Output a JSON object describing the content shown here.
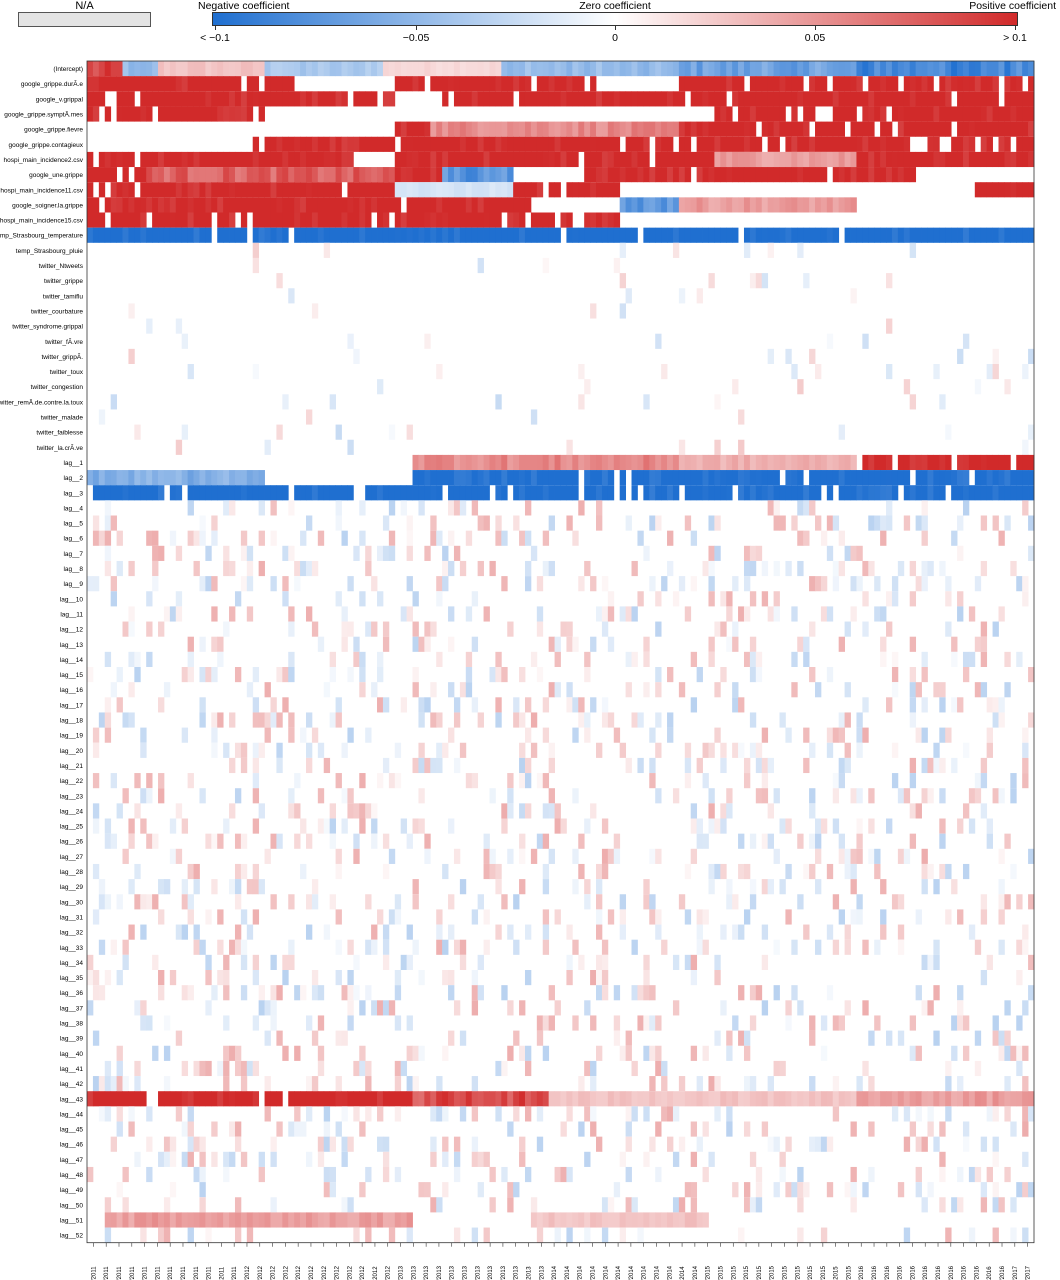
{
  "legend": {
    "na_label": "N/A",
    "negative_label": "Negative coefficient",
    "zero_label": "Zero coefficient",
    "positive_label": "Positive coefficient",
    "ticks": [
      "< −0.1",
      "−0.05",
      "0",
      "0.05",
      "> 0.1"
    ],
    "colors": {
      "negative": "#1f6fd0",
      "zero": "#ffffff",
      "positive": "#d12a2a",
      "na": "#e4e4e4"
    }
  },
  "chart_data": {
    "type": "heatmap",
    "value_range": [
      -0.1,
      0.1
    ],
    "n_time_columns": 160,
    "rows": [
      "(Intercept)",
      "google_grippe.durÃ.e",
      "google_v.grippal",
      "google_grippe.symptÃ.mes",
      "google_grippe.fievre",
      "google_grippe.contagieux",
      "hospi_main_incidence2.csv",
      "google_une.grippe",
      "hospi_main_incidence11.csv",
      "google_soigner.la.grippe",
      "hospi_main_incidence15.csv",
      "temp_Strasbourg_temperature",
      "temp_Strasbourg_pluie",
      "twitter_Ntweets",
      "twitter_grippe",
      "twitter_tamiflu",
      "twitter_courbature",
      "twitter_syndrome.grippal",
      "twitter_fÃ.vre",
      "twitter_grippÃ.",
      "twitter_toux",
      "twitter_congestion",
      "twitter_remÃ.de.contre.la.toux",
      "twitter_malade",
      "twitter_faiblesse",
      "twitter_la.crÃ.ve",
      "lag__1",
      "lag__2",
      "lag__3",
      "lag__4",
      "lag__5",
      "lag__6",
      "lag__7",
      "lag__8",
      "lag__9",
      "lag__10",
      "lag__11",
      "lag__12",
      "lag__13",
      "lag__14",
      "lag__15",
      "lag__16",
      "lag__17",
      "lag__18",
      "lag__19",
      "lag__20",
      "lag__21",
      "lag__22",
      "lag__23",
      "lag__24",
      "lag__25",
      "lag__26",
      "lag__27",
      "lag__28",
      "lag__29",
      "lag__30",
      "lag__31",
      "lag__32",
      "lag__33",
      "lag__34",
      "lag__35",
      "lag__36",
      "lag__37",
      "lag__38",
      "lag__39",
      "lag__40",
      "lag__41",
      "lag__42",
      "lag__43",
      "lag__44",
      "lag__45",
      "lag__46",
      "lag__47",
      "lag__48",
      "lag__49",
      "lag__50",
      "lag__51",
      "lag__52"
    ],
    "x_tick_labels": [
      "01/2011",
      "02/2011",
      "03/2011",
      "04/2011",
      "05/2011",
      "06/2011",
      "07/2011",
      "08/2011",
      "09/2011",
      "10/2011",
      "11/2011",
      "12/2011",
      "01/2012",
      "02/2012",
      "03/2012",
      "04/2012",
      "05/2012",
      "06/2012",
      "07/2012",
      "08/2012",
      "09/2012",
      "10/2012",
      "11/2012",
      "12/2012",
      "01/2013",
      "02/2013",
      "03/2013",
      "04/2013",
      "05/2013",
      "06/2013",
      "07/2013",
      "08/2013",
      "09/2013",
      "10/2013",
      "11/2013",
      "12/2013",
      "01/2014",
      "02/2014",
      "03/2014",
      "04/2014",
      "05/2014",
      "06/2014",
      "07/2014",
      "08/2014",
      "09/2014",
      "10/2014",
      "11/2014",
      "12/2014",
      "01/2015",
      "02/2015",
      "03/2015",
      "04/2015",
      "05/2015",
      "06/2015",
      "07/2015",
      "08/2015",
      "09/2015",
      "10/2015",
      "11/2015",
      "12/2015",
      "01/2016",
      "02/2016",
      "03/2016",
      "04/2016",
      "05/2016",
      "06/2016",
      "07/2016",
      "08/2016",
      "09/2016",
      "10/2016",
      "11/2016",
      "12/2016",
      "01/2017",
      "02/2017"
    ],
    "row_profiles": {
      "(Intercept)": [
        [
          0,
          6,
          0.09
        ],
        [
          6,
          12,
          -0.05
        ],
        [
          12,
          30,
          0.03
        ],
        [
          30,
          50,
          -0.04
        ],
        [
          50,
          70,
          0.02
        ],
        [
          70,
          100,
          -0.05
        ],
        [
          100,
          130,
          -0.07
        ],
        [
          130,
          160,
          -0.09
        ]
      ],
      "google_grippe.durÃ.e": [
        [
          0,
          5,
          0.12
        ],
        [
          5,
          35,
          0.12
        ],
        [
          35,
          52,
          0
        ],
        [
          52,
          86,
          0.12
        ],
        [
          86,
          100,
          0
        ],
        [
          100,
          160,
          0.12
        ]
      ],
      "google_v.grippal": [
        [
          0,
          3,
          0.12
        ],
        [
          3,
          5,
          0
        ],
        [
          5,
          52,
          0.12
        ],
        [
          52,
          60,
          0
        ],
        [
          60,
          160,
          0.12
        ]
      ],
      "google_grippe.symptÃ.mes": [
        [
          0,
          30,
          0.12
        ],
        [
          30,
          52,
          0
        ],
        [
          52,
          106,
          0
        ],
        [
          106,
          160,
          0.12
        ]
      ],
      "google_grippe.fievre": [
        [
          0,
          52,
          0
        ],
        [
          52,
          58,
          0.12
        ],
        [
          58,
          100,
          0.06
        ],
        [
          100,
          140,
          0.12
        ],
        [
          140,
          160,
          0.12
        ]
      ],
      "google_grippe.contagieux": [
        [
          0,
          28,
          0
        ],
        [
          28,
          52,
          0.12
        ],
        [
          52,
          100,
          0.12
        ],
        [
          100,
          160,
          0.12
        ]
      ],
      "hospi_main_incidence2.csv": [
        [
          0,
          45,
          0.12
        ],
        [
          45,
          52,
          0
        ],
        [
          52,
          106,
          0.12
        ],
        [
          106,
          130,
          0.05
        ],
        [
          130,
          160,
          0.12
        ]
      ],
      "google_une.grippe": [
        [
          0,
          10,
          0.12
        ],
        [
          10,
          52,
          0.08
        ],
        [
          52,
          60,
          0.12
        ],
        [
          60,
          72,
          -0.08
        ],
        [
          72,
          84,
          0
        ],
        [
          84,
          140,
          0.12
        ],
        [
          140,
          160,
          0
        ]
      ],
      "hospi_main_incidence11.csv": [
        [
          0,
          52,
          0.12
        ],
        [
          52,
          72,
          -0.02
        ],
        [
          72,
          90,
          0.12
        ],
        [
          90,
          150,
          0
        ],
        [
          150,
          160,
          0.12
        ]
      ],
      "google_soigner.la.grippe": [
        [
          0,
          75,
          0.12
        ],
        [
          75,
          90,
          0
        ],
        [
          90,
          100,
          -0.08
        ],
        [
          100,
          130,
          0.05
        ],
        [
          130,
          160,
          0
        ]
      ],
      "hospi_main_incidence15.csv": [
        [
          0,
          52,
          0.12
        ],
        [
          52,
          90,
          0.12
        ],
        [
          90,
          100,
          0
        ],
        [
          100,
          160,
          0
        ]
      ],
      "temp_Strasbourg_temperature": [
        [
          0,
          160,
          -0.12
        ]
      ],
      "lag__1": [
        [
          0,
          55,
          0
        ],
        [
          55,
          100,
          0.06
        ],
        [
          100,
          130,
          0.04
        ],
        [
          130,
          160,
          0.12
        ]
      ],
      "lag__2": [
        [
          0,
          30,
          -0.06
        ],
        [
          30,
          55,
          0
        ],
        [
          55,
          130,
          -0.12
        ],
        [
          130,
          160,
          -0.12
        ]
      ],
      "lag__3": [
        [
          0,
          160,
          -0.12
        ]
      ],
      "lag__43": [
        [
          0,
          55,
          0.12
        ],
        [
          55,
          78,
          0.09
        ],
        [
          78,
          130,
          0.03
        ],
        [
          130,
          160,
          0.05
        ]
      ],
      "lag__51": [
        [
          0,
          3,
          0
        ],
        [
          3,
          55,
          0.05
        ],
        [
          55,
          75,
          0
        ],
        [
          75,
          105,
          0.03
        ],
        [
          105,
          160,
          0
        ]
      ]
    }
  }
}
